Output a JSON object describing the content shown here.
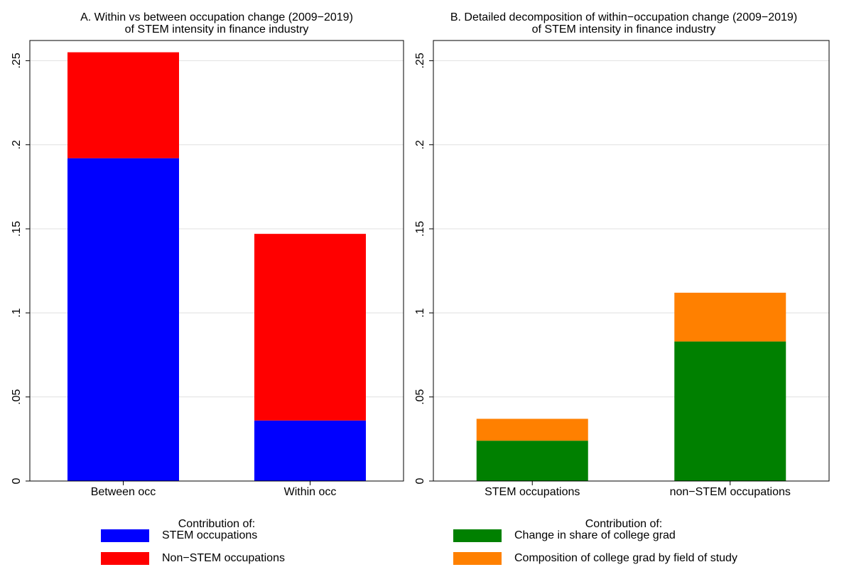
{
  "chart_data": [
    {
      "type": "bar",
      "stacked": true,
      "title": "A. Within vs between occupation change (2009−2019)",
      "subtitle": "of STEM intensity in finance industry",
      "categories": [
        "Between occ",
        "Within occ"
      ],
      "series": [
        {
          "name": "STEM occupations",
          "color": "#0000ff",
          "values": [
            0.192,
            0.036
          ]
        },
        {
          "name": "Non−STEM occupations",
          "color": "#ff0000",
          "values": [
            0.063,
            0.111
          ]
        }
      ],
      "legend_title": "Contribution of:",
      "ylim": [
        0,
        0.262
      ],
      "yticks": [
        {
          "value": 0,
          "label": "0"
        },
        {
          "value": 0.05,
          "label": ".05"
        },
        {
          "value": 0.1,
          "label": ".1"
        },
        {
          "value": 0.15,
          "label": ".15"
        },
        {
          "value": 0.2,
          "label": ".2"
        },
        {
          "value": 0.25,
          "label": ".25"
        }
      ],
      "grid": true
    },
    {
      "type": "bar",
      "stacked": true,
      "title": "B. Detailed decomposition of within−occupation change (2009−2019)",
      "subtitle": "of STEM intensity in finance industry",
      "categories": [
        "STEM occupations",
        "non−STEM occupations"
      ],
      "series": [
        {
          "name": "Change in share of college grad",
          "color": "#008000",
          "values": [
            0.024,
            0.083
          ]
        },
        {
          "name": "Composition of college grad by field of study",
          "color": "#ff8000",
          "values": [
            0.013,
            0.029
          ]
        }
      ],
      "legend_title": "Contribution of:",
      "ylim": [
        0,
        0.262
      ],
      "yticks": [
        {
          "value": 0,
          "label": "0"
        },
        {
          "value": 0.05,
          "label": ".05"
        },
        {
          "value": 0.1,
          "label": ".1"
        },
        {
          "value": 0.15,
          "label": ".15"
        },
        {
          "value": 0.2,
          "label": ".2"
        },
        {
          "value": 0.25,
          "label": ".25"
        }
      ],
      "grid": true
    }
  ]
}
